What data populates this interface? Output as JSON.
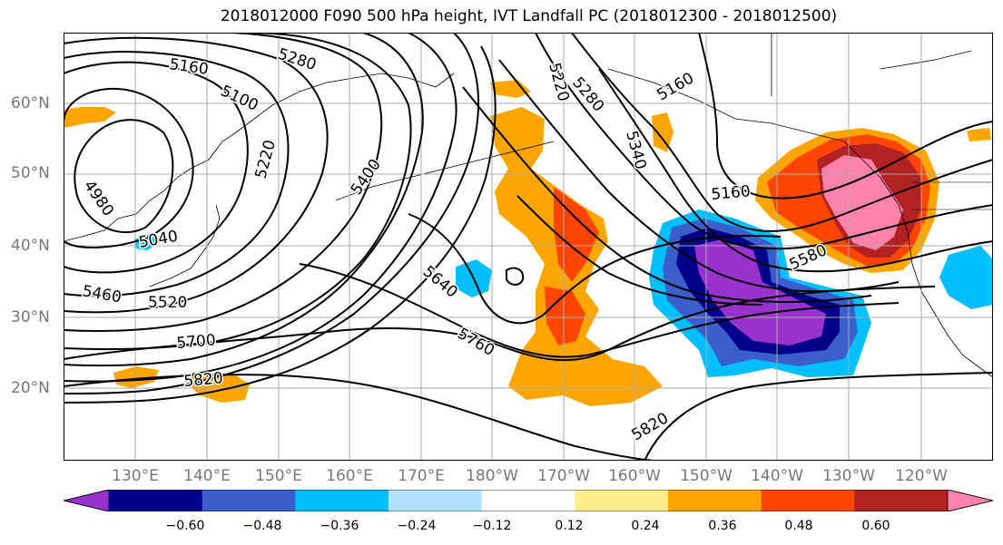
{
  "title": "2018012000 F090 500 hPa height, IVT Landfall PC (2018012300 - 2018012500)",
  "lat_labels": [
    "60°N",
    "50°N",
    "40°N",
    "30°N",
    "20°N"
  ],
  "lon_labels": [
    "130°E",
    "140°E",
    "150°E",
    "160°E",
    "170°E",
    "180°W",
    "170°W",
    "160°W",
    "150°W",
    "140°W",
    "130°W",
    "120°W"
  ],
  "contour_labels": [
    "5280",
    "5160",
    "5100",
    "5220",
    "5400",
    "4980",
    "5040",
    "5460",
    "5520",
    "5700",
    "5820",
    "5640",
    "5760",
    "5220",
    "5280",
    "5340",
    "5160",
    "5160",
    "5580",
    "5820"
  ],
  "colorbar": {
    "ticks": [
      "−0.60",
      "−0.48",
      "−0.36",
      "−0.24",
      "−0.12",
      "0.12",
      "0.24",
      "0.36",
      "0.48",
      "0.60"
    ],
    "colors": [
      "#9932cc",
      "#00008b",
      "#3a5fcd",
      "#00bfff",
      "#b0e2ff",
      "#ffffff",
      "#ffec8b",
      "#ffa500",
      "#ff4500",
      "#b22222",
      "#ff82ab"
    ]
  },
  "colors": {
    "grid": "#aaaaaa",
    "contour": "#000000",
    "tick_label": "#777777"
  }
}
